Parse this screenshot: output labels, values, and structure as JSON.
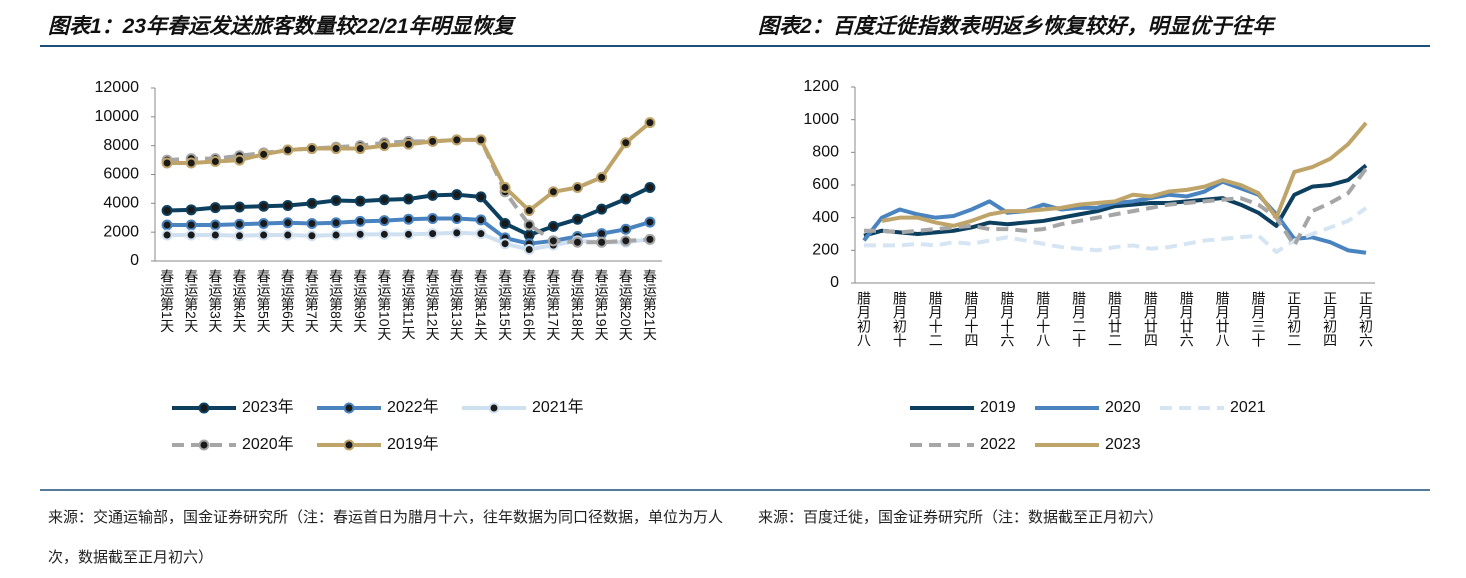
{
  "chart_data": [
    {
      "type": "line",
      "title": "图表1：23年春运发送旅客数量较22/21年明显恢复",
      "source": "来源：交通运输部，国金证券研究所（注：春运首日为腊月十六，往年数据为同口径数据，单位为万人次，数据截至正月初六）",
      "categories": [
        "春运第1天",
        "春运第2天",
        "春运第3天",
        "春运第4天",
        "春运第5天",
        "春运第6天",
        "春运第7天",
        "春运第8天",
        "春运第9天",
        "春运第10天",
        "春运第11天",
        "春运第12天",
        "春运第13天",
        "春运第14天",
        "春运第15天",
        "春运第16天",
        "春运第17天",
        "春运第18天",
        "春运第19天",
        "春运第20天",
        "春运第21天"
      ],
      "ylim": [
        0,
        12000
      ],
      "yticks": [
        0,
        2000,
        4000,
        6000,
        8000,
        10000,
        12000
      ],
      "markers": true,
      "series": [
        {
          "name": "2023年",
          "color": "#0d3f5e",
          "dash": false,
          "values": [
            3500,
            3550,
            3700,
            3750,
            3800,
            3850,
            4000,
            4200,
            4150,
            4250,
            4300,
            4550,
            4600,
            4450,
            2600,
            1800,
            2400,
            2900,
            3600,
            4300,
            5100
          ]
        },
        {
          "name": "2022年",
          "color": "#4a84c0",
          "dash": false,
          "values": [
            2500,
            2500,
            2500,
            2550,
            2600,
            2650,
            2600,
            2650,
            2750,
            2800,
            2900,
            2950,
            2950,
            2850,
            1600,
            1200,
            1400,
            1700,
            1900,
            2200,
            2700
          ]
        },
        {
          "name": "2021年",
          "color": "#cfe0f0",
          "dash": false,
          "values": [
            1800,
            1800,
            1800,
            1750,
            1800,
            1800,
            1750,
            1800,
            1850,
            1850,
            1850,
            1900,
            1950,
            1900,
            1200,
            800,
            1100,
            1400,
            1300,
            1300,
            1500
          ]
        },
        {
          "name": "2020年",
          "color": "#a6a6a6",
          "dash": true,
          "values": [
            7000,
            7100,
            7100,
            7300,
            7500,
            7700,
            7800,
            7900,
            8000,
            8200,
            8300,
            8300,
            8400,
            8400,
            4800,
            2500,
            1400,
            1300,
            1300,
            1400,
            1500
          ]
        },
        {
          "name": "2019年",
          "color": "#bfa46a",
          "dash": false,
          "values": [
            6800,
            6800,
            6900,
            7000,
            7400,
            7700,
            7800,
            7800,
            7800,
            8000,
            8100,
            8300,
            8400,
            8400,
            5100,
            3500,
            4800,
            5100,
            5800,
            8200,
            9600
          ]
        }
      ]
    },
    {
      "type": "line",
      "title": "图表2：百度迁徙指数表明返乡恢复较好，明显优于往年",
      "source": "来源：百度迁徙，国金证券研究所（注：数据截至正月初六）",
      "categories": [
        "腊月初八",
        null,
        "腊月初十",
        null,
        "腊月十二",
        null,
        "腊月十四",
        null,
        "腊月十六",
        null,
        "腊月十八",
        null,
        "腊月二十",
        null,
        "腊月廿二",
        null,
        "腊月廿四",
        null,
        "腊月廿六",
        null,
        "腊月廿八",
        null,
        "腊月三十",
        null,
        "正月初二",
        null,
        "正月初四",
        null,
        "正月初六"
      ],
      "ylim": [
        0,
        1200
      ],
      "yticks": [
        0,
        200,
        400,
        600,
        800,
        1000,
        1200
      ],
      "markers": false,
      "series": [
        {
          "name": "2019",
          "color": "#0d3f5e",
          "dash": false,
          "values": [
            290,
            320,
            310,
            300,
            310,
            320,
            340,
            370,
            360,
            370,
            380,
            400,
            420,
            440,
            470,
            480,
            490,
            490,
            500,
            510,
            520,
            480,
            430,
            350,
            540,
            590,
            600,
            630,
            720
          ]
        },
        {
          "name": "2020",
          "color": "#4a84c0",
          "dash": false,
          "values": [
            260,
            400,
            450,
            420,
            400,
            410,
            450,
            500,
            430,
            440,
            480,
            450,
            460,
            460,
            490,
            500,
            520,
            540,
            530,
            560,
            620,
            580,
            540,
            420,
            270,
            280,
            250,
            200,
            185
          ]
        },
        {
          "name": "2021",
          "color": "#d6e5f3",
          "dash": true,
          "values": [
            230,
            230,
            230,
            240,
            230,
            250,
            240,
            260,
            280,
            260,
            240,
            220,
            210,
            200,
            220,
            230,
            210,
            220,
            240,
            260,
            270,
            280,
            290,
            190,
            260,
            300,
            340,
            380,
            460
          ]
        },
        {
          "name": "2022",
          "color": "#a6a6a6",
          "dash": true,
          "values": [
            320,
            320,
            310,
            320,
            330,
            340,
            350,
            330,
            330,
            320,
            330,
            360,
            380,
            400,
            420,
            440,
            460,
            480,
            490,
            500,
            510,
            520,
            480,
            400,
            230,
            440,
            490,
            550,
            700
          ]
        },
        {
          "name": "2023",
          "color": "#bfa46a",
          "dash": false,
          "values": [
            null,
            380,
            400,
            400,
            370,
            350,
            380,
            420,
            440,
            440,
            450,
            460,
            480,
            490,
            500,
            540,
            530,
            560,
            570,
            590,
            630,
            600,
            550,
            400,
            680,
            710,
            760,
            850,
            980
          ]
        }
      ]
    }
  ]
}
